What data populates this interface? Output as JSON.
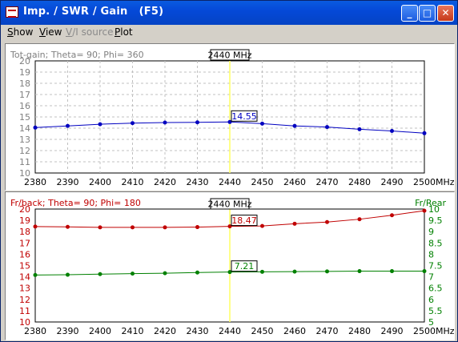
{
  "window": {
    "title": "Imp. / SWR / Gain   (F5)",
    "buttons": {
      "minimize": "_",
      "maximize": "□",
      "close": "✕"
    }
  },
  "menu": [
    {
      "label": "Show",
      "enabled": true
    },
    {
      "label": "View",
      "enabled": true
    },
    {
      "label": "V/I source",
      "enabled": false
    },
    {
      "label": "Plot",
      "enabled": true
    }
  ],
  "colors": {
    "gain": "#0000c0",
    "frback": "#c00000",
    "frrear": "#008000",
    "marker": "#ffff60",
    "grid": "#c0c0c0"
  },
  "chart_data": [
    {
      "type": "line",
      "title": "Tot-gain; Theta= 90; Phi= 360",
      "x": [
        2380,
        2390,
        2400,
        2410,
        2420,
        2430,
        2440,
        2450,
        2460,
        2470,
        2480,
        2490,
        2500
      ],
      "x_ticks": [
        "2380",
        "2390",
        "2400",
        "2410",
        "2420",
        "2430",
        "2440",
        "2450",
        "2460",
        "2470",
        "2480",
        "2490",
        "2500"
      ],
      "x_unit": "MHz",
      "ylim": [
        10,
        20
      ],
      "y_ticks": [
        "20",
        "19",
        "18",
        "17",
        "16",
        "15",
        "14",
        "13",
        "12",
        "11",
        "10"
      ],
      "grid": true,
      "marker_label": "2440 MHz",
      "marker_x": 2440,
      "series": [
        {
          "values": [
            14.05,
            14.2,
            14.35,
            14.45,
            14.5,
            14.52,
            14.55,
            14.4,
            14.2,
            14.1,
            13.9,
            13.75,
            13.55
          ],
          "value_label": "14.55"
        }
      ]
    },
    {
      "type": "line",
      "title": "Fr/back; Theta= 90; Phi= 180",
      "right_axis_title": "Fr/Rear",
      "x": [
        2380,
        2390,
        2400,
        2410,
        2420,
        2430,
        2440,
        2450,
        2460,
        2470,
        2480,
        2490,
        2500
      ],
      "x_ticks": [
        "2380",
        "2390",
        "2400",
        "2410",
        "2420",
        "2430",
        "2440",
        "2450",
        "2460",
        "2470",
        "2480",
        "2490",
        "2500"
      ],
      "x_unit": "MHz",
      "ylim": [
        10,
        20
      ],
      "y_ticks": [
        "20",
        "19",
        "18",
        "17",
        "16",
        "15",
        "14",
        "13",
        "12",
        "11",
        "10"
      ],
      "y2lim": [
        5,
        10
      ],
      "y2_ticks": [
        "10",
        "9.5",
        "9",
        "8.5",
        "8",
        "7.5",
        "7",
        "6.5",
        "6",
        "5.5",
        "5"
      ],
      "grid": false,
      "marker_label": "2440 MHz",
      "marker_x": 2440,
      "series": [
        {
          "axis": "left",
          "values": [
            18.45,
            18.42,
            18.38,
            18.38,
            18.38,
            18.4,
            18.47,
            18.5,
            18.7,
            18.85,
            19.1,
            19.45,
            19.85
          ],
          "value_label": "18.47"
        },
        {
          "axis": "right",
          "values": [
            7.08,
            7.09,
            7.12,
            7.14,
            7.16,
            7.19,
            7.21,
            7.22,
            7.23,
            7.24,
            7.25,
            7.25,
            7.25
          ],
          "value_label": "7.21"
        }
      ]
    }
  ]
}
